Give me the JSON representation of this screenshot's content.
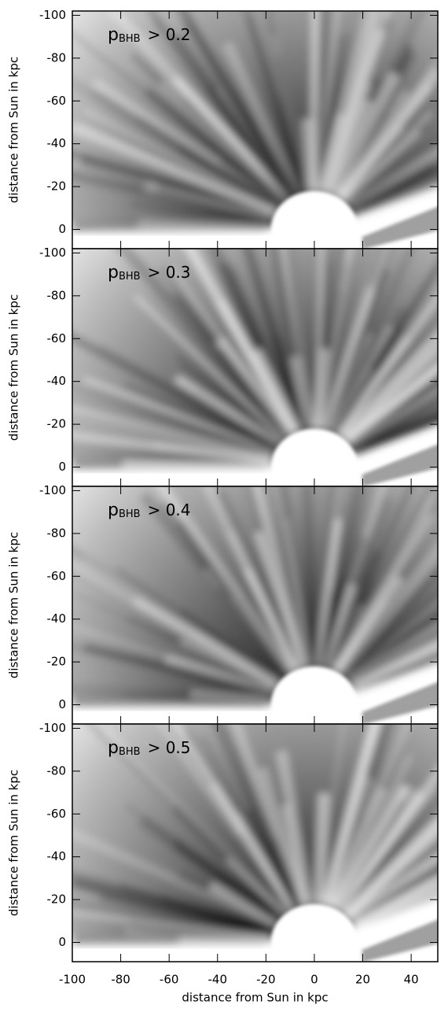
{
  "chart_data": [
    {
      "type": "density",
      "annotation": {
        "symbol": "p",
        "subscript": "BHB",
        "text": "> 0.2"
      },
      "ylabel": "distance from Sun in kpc",
      "xlim": [
        -100,
        51
      ],
      "ylim": [
        9,
        -102
      ],
      "xticks": [
        -100,
        -80,
        -60,
        -40,
        -20,
        0,
        20,
        40
      ],
      "yticks": [
        -100,
        -80,
        -60,
        -40,
        -20,
        0
      ],
      "show_xtick_labels": false
    },
    {
      "type": "density",
      "annotation": {
        "symbol": "p",
        "subscript": "BHB",
        "text": "> 0.3"
      },
      "ylabel": "distance from Sun in kpc",
      "xlim": [
        -100,
        51
      ],
      "ylim": [
        9,
        -102
      ],
      "xticks": [
        -100,
        -80,
        -60,
        -40,
        -20,
        0,
        20,
        40
      ],
      "yticks": [
        -100,
        -80,
        -60,
        -40,
        -20,
        0
      ],
      "show_xtick_labels": false
    },
    {
      "type": "density",
      "annotation": {
        "symbol": "p",
        "subscript": "BHB",
        "text": "> 0.4"
      },
      "ylabel": "distance from Sun in kpc",
      "xlim": [
        -100,
        51
      ],
      "ylim": [
        9,
        -102
      ],
      "xticks": [
        -100,
        -80,
        -60,
        -40,
        -20,
        0,
        20,
        40
      ],
      "yticks": [
        -100,
        -80,
        -60,
        -40,
        -20,
        0
      ],
      "show_xtick_labels": false
    },
    {
      "type": "density",
      "annotation": {
        "symbol": "p",
        "subscript": "BHB",
        "text": "> 0.5"
      },
      "ylabel": "distance from Sun in kpc",
      "xlabel": "distance from Sun in kpc",
      "xlim": [
        -100,
        51
      ],
      "ylim": [
        9,
        -102
      ],
      "xticks": [
        -100,
        -80,
        -60,
        -40,
        -20,
        0,
        20,
        40
      ],
      "yticks": [
        -100,
        -80,
        -60,
        -40,
        -20,
        0
      ],
      "show_xtick_labels": true
    }
  ]
}
